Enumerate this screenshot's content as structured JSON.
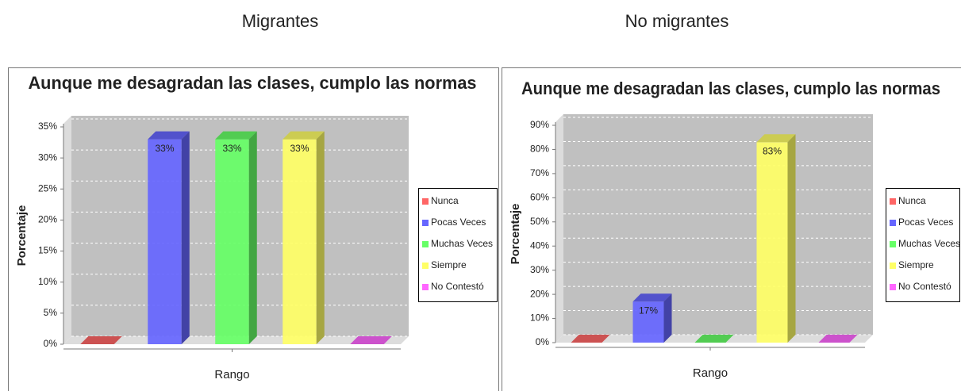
{
  "headings": [
    "Migrantes",
    "No migrantes"
  ],
  "chart_data": [
    {
      "type": "bar",
      "title": "Aunque me desagradan las clases, cumplo las normas",
      "ylabel": "Porcentaje",
      "xlabel": "Rango",
      "categories": [
        null
      ],
      "ylim": [
        0,
        35
      ],
      "yticks": [
        {
          "value": 0,
          "label": "0%"
        },
        {
          "value": 5,
          "label": "5%"
        },
        {
          "value": 10,
          "label": "10%"
        },
        {
          "value": 15,
          "label": "15%"
        },
        {
          "value": 20,
          "label": "20%"
        },
        {
          "value": 25,
          "label": "25%"
        },
        {
          "value": 30,
          "label": "30%"
        },
        {
          "value": 35,
          "label": "35%"
        }
      ],
      "grid": true,
      "legend": "right",
      "series": [
        {
          "name": "Nunca",
          "color": "#ff6666",
          "values": [
            0
          ]
        },
        {
          "name": "Pocas Veces",
          "color": "#6666ff",
          "values": [
            33
          ],
          "value_labels": [
            "33%"
          ]
        },
        {
          "name": "Muchas Veces",
          "color": "#66ff66",
          "values": [
            33
          ],
          "value_labels": [
            "33%"
          ]
        },
        {
          "name": "Siempre",
          "color": "#ffff66",
          "values": [
            33
          ],
          "value_labels": [
            "33%"
          ]
        },
        {
          "name": "No Contestó",
          "color": "#ff66ff",
          "values": [
            0
          ]
        }
      ]
    },
    {
      "type": "bar",
      "title": "Aunque me desagradan las clases, cumplo las normas",
      "ylabel": "Porcentaje",
      "xlabel": "Rango",
      "categories": [
        null
      ],
      "ylim": [
        0,
        90
      ],
      "yticks": [
        {
          "value": 0,
          "label": "0%"
        },
        {
          "value": 10,
          "label": "10%"
        },
        {
          "value": 20,
          "label": "20%"
        },
        {
          "value": 30,
          "label": "30%"
        },
        {
          "value": 40,
          "label": "40%"
        },
        {
          "value": 50,
          "label": "50%"
        },
        {
          "value": 60,
          "label": "60%"
        },
        {
          "value": 70,
          "label": "70%"
        },
        {
          "value": 80,
          "label": "80%"
        },
        {
          "value": 90,
          "label": "90%"
        }
      ],
      "grid": true,
      "legend": "right",
      "series": [
        {
          "name": "Nunca",
          "color": "#ff6666",
          "values": [
            0
          ]
        },
        {
          "name": "Pocas Veces",
          "color": "#6666ff",
          "values": [
            17
          ],
          "value_labels": [
            "17%"
          ]
        },
        {
          "name": "Muchas Veces",
          "color": "#66ff66",
          "values": [
            0
          ]
        },
        {
          "name": "Siempre",
          "color": "#ffff66",
          "values": [
            83
          ],
          "value_labels": [
            "83%"
          ]
        },
        {
          "name": "No Contestó",
          "color": "#ff66ff",
          "values": [
            0
          ]
        }
      ]
    }
  ]
}
